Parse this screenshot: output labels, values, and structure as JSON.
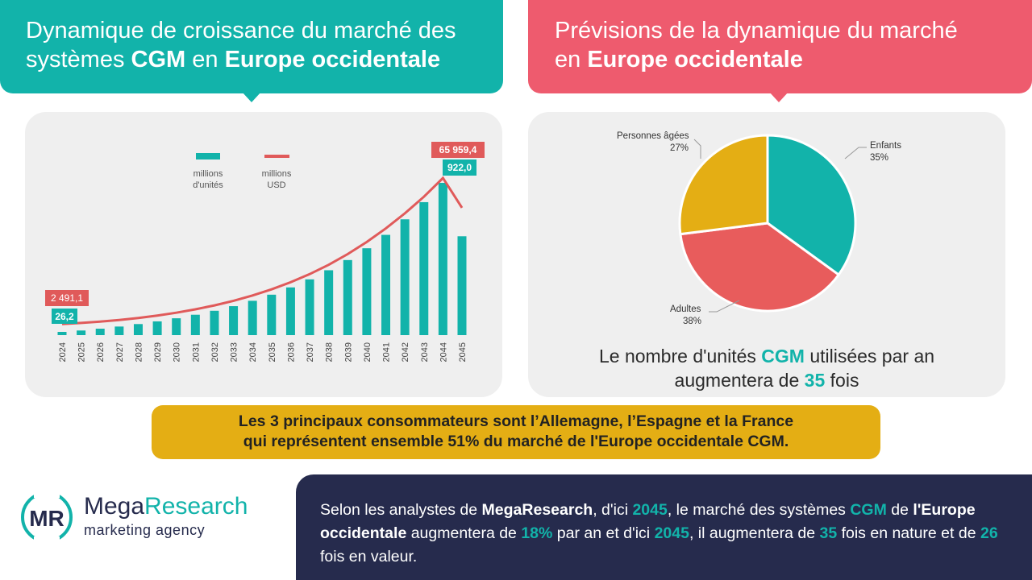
{
  "header_left": {
    "line1": "Dynamique de croissance du marché des",
    "line2_pre": "systèmes ",
    "line2_b1": "CGM",
    "line2_mid": " en ",
    "line2_b2": "Europe occidentale"
  },
  "header_right": {
    "line1": "Prévisions de la dynamique du marché",
    "line2_pre": "en ",
    "line2_b": "Europe occidentale"
  },
  "colors": {
    "teal": "#12b3aa",
    "red": "#e05a5a",
    "pink": "#ee5b6e",
    "yellow": "#e4ae14",
    "navy": "#262b4d"
  },
  "chart_data": [
    {
      "type": "bar",
      "categories": [
        "2024",
        "2025",
        "2026",
        "2027",
        "2028",
        "2029",
        "2030",
        "2031",
        "2032",
        "2033",
        "2034",
        "2035",
        "2036",
        "2037",
        "2038",
        "2039",
        "2040",
        "2041",
        "2042",
        "2043",
        "2044",
        "2045"
      ],
      "series": [
        {
          "name": "millions d'unités",
          "type": "bar",
          "color": "#12b3aa",
          "values": [
            26.2,
            43,
            60,
            80,
            103,
            128,
            157,
            190,
            227,
            270,
            320,
            377,
            445,
            520,
            605,
            700,
            810,
            935,
            1080,
            1240,
            1420,
            922.0
          ],
          "labeled": {
            "first": "26,2",
            "last": "922,0"
          }
        },
        {
          "name": "millions USD",
          "type": "line",
          "color": "#e05a5a",
          "values": [
            2491.1,
            3100,
            3850,
            4750,
            5850,
            7150,
            8700,
            10550,
            12700,
            15200,
            18100,
            21450,
            25300,
            29750,
            34850,
            40700,
            47300,
            54700,
            62900,
            72000,
            82200,
            65959.4
          ],
          "labeled": {
            "first": "2 491,1",
            "last": "65 959,4"
          }
        }
      ],
      "legend": [
        {
          "label_l1": "millions",
          "label_l2": "d'unités"
        },
        {
          "label_l1": "millions",
          "label_l2": "USD"
        }
      ],
      "legend_position": "top-center",
      "grid": false
    },
    {
      "type": "pie",
      "slices": [
        {
          "label": "Enfants",
          "value": 35,
          "pct": "35%",
          "color": "#12b3aa"
        },
        {
          "label": "Adultes",
          "value": 38,
          "pct": "38%",
          "color": "#e85c5c"
        },
        {
          "label": "Personnes âgées",
          "value": 27,
          "pct": "27%",
          "color": "#e4ae14"
        }
      ]
    }
  ],
  "pie_caption": {
    "pre": "Le nombre d'unités ",
    "b1": "CGM",
    "mid": " utilisées par an",
    "line2": "augmentera de ",
    "b2": "35",
    "post": " fois"
  },
  "highlight": {
    "line1": "Les 3 principaux consommateurs sont l’Allemagne, l’Espagne et la France",
    "line2": "qui représentent ensemble 51% du marché de l'Europe occidentale CGM."
  },
  "logo": {
    "mark": "MR",
    "mega": "Mega",
    "research": "Research",
    "sub": "marketing agency"
  },
  "summary": {
    "p1": "Selon les analystes de ",
    "b1": "MegaResearch",
    "p2": ", d'ici ",
    "t1": "2045",
    "p3": ", le marché des systèmes ",
    "t2": "CGM",
    "p4": " de ",
    "b2": "l'Europe occidentale",
    "p5": " augmentera de ",
    "t3": "18%",
    "p6": " par an et d'ici ",
    "t4": "2045",
    "p7": ", il augmentera de ",
    "t5": "35",
    "p8": " fois en nature et de ",
    "t6": "26",
    "p9": " fois en valeur."
  }
}
